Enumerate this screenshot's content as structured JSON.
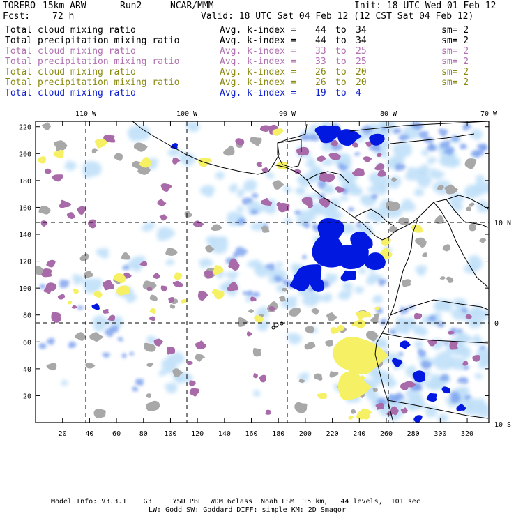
{
  "header": {
    "model": "TORERO",
    "resolution": "15km ARW",
    "run": "Run2",
    "center": "NCAR/MMM",
    "init": "Init: 18 UTC Wed 01 Feb 12",
    "fcst_label": "Fcst:",
    "fcst_hours": "72 h",
    "valid": "Valid: 18 UTC Sat 04 Feb 12 (12 CST Sat 04 Feb 12)"
  },
  "legend": [
    {
      "field": "Total cloud mixing ratio",
      "kindex_label": "Avg. k-index =",
      "from": "44",
      "to_word": "to",
      "to": "34",
      "sm": "sm= 2",
      "color": "#000000"
    },
    {
      "field": "Total precipitation mixing ratio",
      "kindex_label": "Avg. k-index =",
      "from": "44",
      "to_word": "to",
      "to": "34",
      "sm": "sm= 2",
      "color": "#000000"
    },
    {
      "field": "Total cloud mixing ratio",
      "kindex_label": "Avg. k-index =",
      "from": "33",
      "to_word": "to",
      "to": "25",
      "sm": "sm= 2",
      "color": "#b070b0"
    },
    {
      "field": "Total precipitation mixing ratio",
      "kindex_label": "Avg. k-index =",
      "from": "33",
      "to_word": "to",
      "to": "25",
      "sm": "sm= 2",
      "color": "#b070b0"
    },
    {
      "field": "Total cloud mixing ratio",
      "kindex_label": "Avg. k-index =",
      "from": "26",
      "to_word": "to",
      "to": "20",
      "sm": "sm= 2",
      "color": "#8a8a10"
    },
    {
      "field": "Total precipitation mixing ratio",
      "kindex_label": "Avg. k-index =",
      "from": "26",
      "to_word": "to",
      "to": "20",
      "sm": "sm= 2",
      "color": "#8a8a10"
    },
    {
      "field": "Total cloud mixing ratio",
      "kindex_label": "Avg. k-index =",
      "from": "19",
      "to_word": "to",
      "to": "4",
      "sm": "",
      "color": "#1020d0"
    }
  ],
  "map": {
    "lon_labels": [
      "110 W",
      "100 W",
      "90 W",
      "80 W",
      "70 W"
    ],
    "lat_labels": [
      "10 N",
      "0",
      "10 S"
    ],
    "x_ticks": [
      "20",
      "40",
      "60",
      "80",
      "100",
      "120",
      "140",
      "160",
      "180",
      "200",
      "220",
      "240",
      "260",
      "280",
      "300",
      "320"
    ],
    "y_ticks": [
      "220",
      "200",
      "180",
      "160",
      "140",
      "120",
      "100",
      "80",
      "60",
      "40",
      "20"
    ],
    "colors": {
      "gray": "#a8a8a8",
      "purple": "#a86aa8",
      "yellow": "#f5f064",
      "light_blue": "#c0e0f8",
      "mid_blue": "#7aa0ee",
      "deep_blue": "#0018e0",
      "coast": "#000000"
    }
  },
  "footer": {
    "line1": "Model Info: V3.3.1    G3     YSU PBL  WDM 6class  Noah LSM  15 km,   44 levels,  101 sec",
    "line2": "LW: Godd SW: Goddard DIFF: simple KM: 2D Smagor"
  }
}
